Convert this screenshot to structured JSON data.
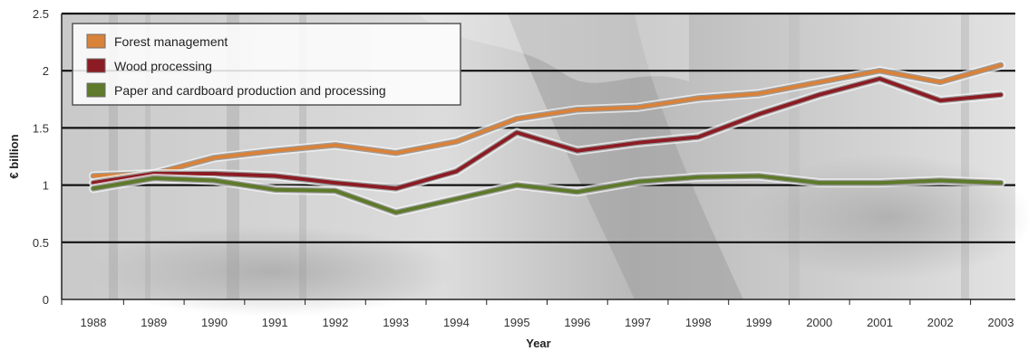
{
  "chart_data": {
    "type": "line",
    "title": "",
    "xlabel": "Year",
    "ylabel": "€ billion",
    "x": [
      "1988",
      "1989",
      "1990",
      "1991",
      "1992",
      "1993",
      "1994",
      "1995",
      "1996",
      "1997",
      "1998",
      "1999",
      "2000",
      "2001",
      "2002",
      "2003"
    ],
    "ylim": [
      0,
      2.5
    ],
    "yticks": [
      "0",
      "0.5",
      "1",
      "1.5",
      "2",
      "2.5"
    ],
    "grid": "horizontal",
    "legend_position": "top-left",
    "series": [
      {
        "name": "Forest management",
        "color": "#d9823a",
        "values": [
          1.08,
          1.1,
          1.24,
          1.3,
          1.35,
          1.28,
          1.38,
          1.58,
          1.66,
          1.68,
          1.76,
          1.8,
          1.9,
          2.0,
          1.9,
          2.05
        ]
      },
      {
        "name": "Wood processing",
        "color": "#8c1c24",
        "values": [
          1.02,
          1.1,
          1.1,
          1.08,
          1.02,
          0.97,
          1.12,
          1.46,
          1.3,
          1.37,
          1.42,
          1.62,
          1.79,
          1.93,
          1.74,
          1.79
        ]
      },
      {
        "name": "Paper and cardboard production and processing",
        "color": "#5e7a2a",
        "values": [
          0.97,
          1.06,
          1.04,
          0.96,
          0.95,
          0.76,
          0.88,
          1.0,
          0.94,
          1.03,
          1.07,
          1.08,
          1.02,
          1.02,
          1.04,
          1.02
        ]
      }
    ]
  }
}
